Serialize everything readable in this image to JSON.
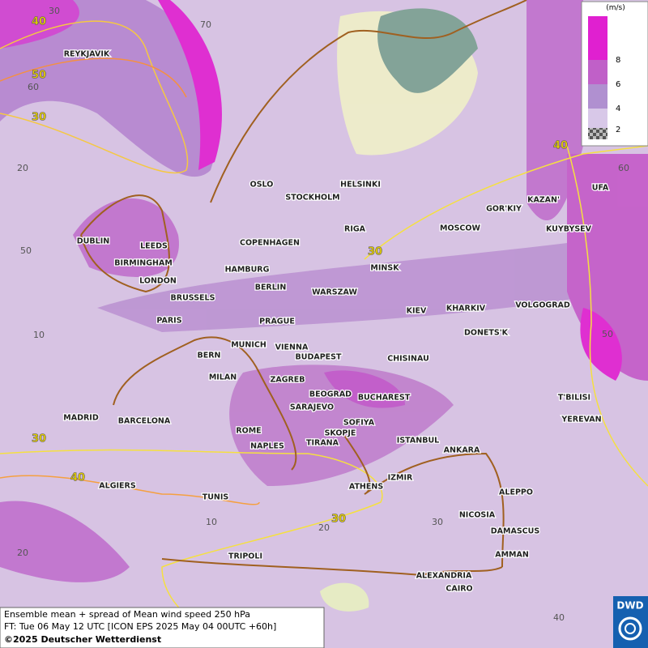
{
  "map": {
    "cities": [
      "REYKJAVIK",
      "DUBLIN",
      "LEEDS",
      "BIRMINGHAM",
      "LONDON",
      "BRUSSELS",
      "PARIS",
      "OSLO",
      "STOCKHOLM",
      "HELSINKI",
      "RIGA",
      "COPENHAGEN",
      "HAMBURG",
      "BERLIN",
      "WARSZAW",
      "MINSK",
      "MOSCOW",
      "GOR'KIY",
      "KAZAN'",
      "UFA",
      "KUYBYSEV",
      "VOLGOGRAD",
      "KHARKIV",
      "KIEV",
      "DONETS'K",
      "PRAGUE",
      "MUNICH",
      "VIENNA",
      "BERN",
      "MILAN",
      "BUDAPEST",
      "CHISINAU",
      "ZAGREB",
      "BEOGRAD",
      "BUCHAREST",
      "SARAJEVO",
      "SOFIYA",
      "SKOPJE",
      "TIRANA",
      "ISTANBUL",
      "ANKARA",
      "T'BILISI",
      "YEREVAN",
      "MADRID",
      "BARCELONA",
      "ROME",
      "NAPLES",
      "ALGIERS",
      "TUNIS",
      "ATHENS",
      "IZMIR",
      "ALEPPO",
      "NICOSIA",
      "DAMASCUS",
      "AMMAN",
      "TRIPOLI",
      "ALEXANDRIA",
      "CAIRO"
    ],
    "contour_labels": [
      "40",
      "50",
      "30",
      "40",
      "30",
      "30",
      "40",
      "30"
    ],
    "grid_labels": [
      "30",
      "70",
      "60",
      "20",
      "50",
      "10",
      "60",
      "50",
      "10",
      "20",
      "30",
      "40",
      "20"
    ]
  },
  "legend": {
    "unit": "(m/s)",
    "ticks": [
      "8",
      "6",
      "4",
      "2"
    ]
  },
  "caption": {
    "line1": "Ensemble mean + spread of Mean wind speed 250 hPa",
    "line2": "FT: Tue 06 May 12 UTC [ICON EPS 2025 May 04 00UTC +60h]",
    "line3": "©2025 Deutscher Wetterdienst"
  },
  "logo": "DWD"
}
